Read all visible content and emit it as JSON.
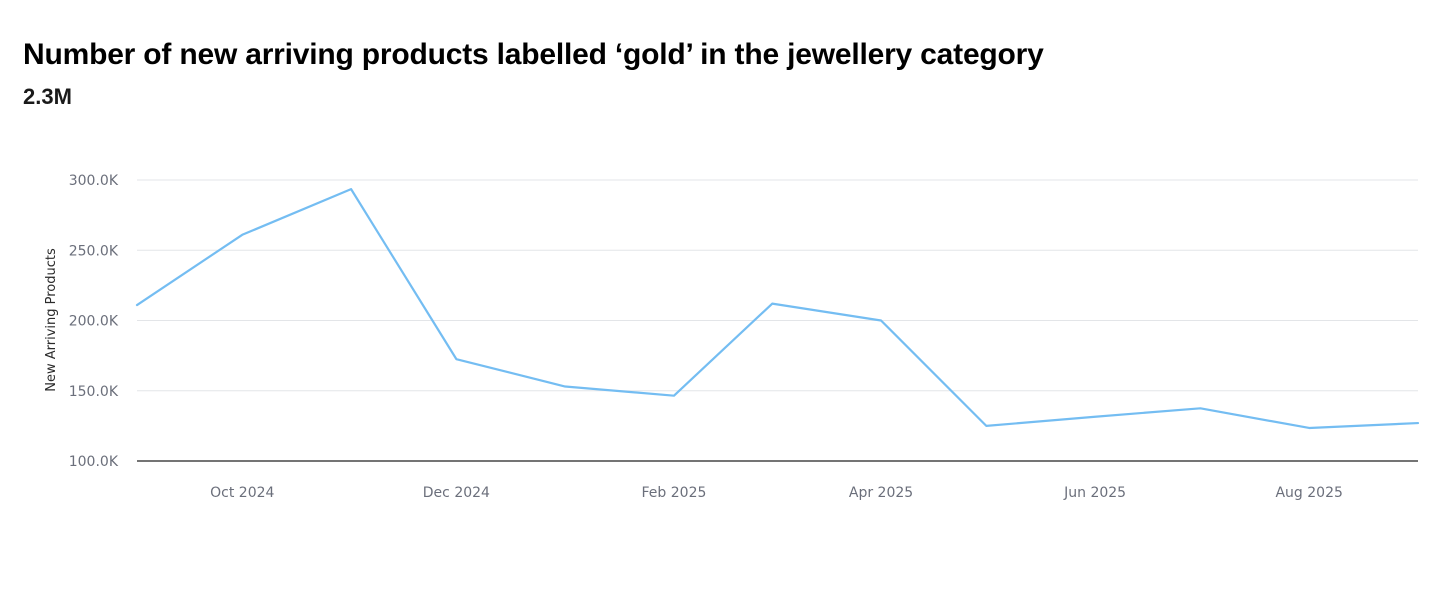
{
  "header": {
    "title": "Number of new arriving products labelled ‘gold’ in the jewellery category",
    "total": "2.3M"
  },
  "chart_data": {
    "type": "line",
    "ylabel": "New Arriving Products",
    "ylim": [
      100000,
      300000
    ],
    "y_ticks": [
      {
        "value": 100000,
        "label": "100.0K"
      },
      {
        "value": 150000,
        "label": "150.0K"
      },
      {
        "value": 200000,
        "label": "200.0K"
      },
      {
        "value": 250000,
        "label": "250.0K"
      },
      {
        "value": 300000,
        "label": "300.0K"
      }
    ],
    "x_range": [
      "2024-09-01",
      "2025-09-01"
    ],
    "x_ticks": [
      {
        "date": "2024-10-01",
        "label": "Oct 2024"
      },
      {
        "date": "2024-12-01",
        "label": "Dec 2024"
      },
      {
        "date": "2025-02-01",
        "label": "Feb 2025"
      },
      {
        "date": "2025-04-01",
        "label": "Apr 2025"
      },
      {
        "date": "2025-06-01",
        "label": "Jun 2025"
      },
      {
        "date": "2025-08-01",
        "label": "Aug 2025"
      }
    ],
    "grid": true,
    "line_color": "#74bdf2",
    "series": [
      {
        "points": [
          {
            "x": "2024-09-01",
            "y": 211000
          },
          {
            "x": "2024-10-01",
            "y": 261000
          },
          {
            "x": "2024-11-01",
            "y": 293500
          },
          {
            "x": "2024-12-01",
            "y": 172500
          },
          {
            "x": "2025-01-01",
            "y": 153000
          },
          {
            "x": "2025-02-01",
            "y": 146500
          },
          {
            "x": "2025-03-01",
            "y": 212000
          },
          {
            "x": "2025-04-01",
            "y": 200000
          },
          {
            "x": "2025-05-01",
            "y": 125000
          },
          {
            "x": "2025-06-01",
            "y": 131500
          },
          {
            "x": "2025-07-01",
            "y": 137500
          },
          {
            "x": "2025-08-01",
            "y": 123500
          },
          {
            "x": "2025-09-01",
            "y": 127000
          }
        ]
      }
    ]
  }
}
